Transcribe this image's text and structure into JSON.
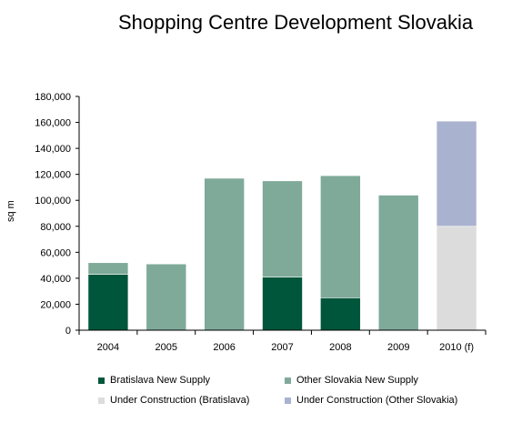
{
  "chart_data": {
    "type": "bar",
    "stacked": true,
    "title": "Shopping Centre Development Slovakia",
    "ylabel": "sq m",
    "xlabel": "",
    "ylim": [
      0,
      180000
    ],
    "yticks": [
      "0",
      "20,000",
      "40,000",
      "60,000",
      "80,000",
      "100,000",
      "120,000",
      "140,000",
      "160,000",
      "180,000"
    ],
    "ytick_values": [
      0,
      20000,
      40000,
      60000,
      80000,
      100000,
      120000,
      140000,
      160000,
      180000
    ],
    "categories": [
      "2004",
      "2005",
      "2006",
      "2007",
      "2008",
      "2009",
      "2010 (f)"
    ],
    "series": [
      {
        "name": "Bratislava New Supply",
        "color": "#00563b",
        "values": [
          43000,
          0,
          0,
          41000,
          25000,
          0,
          0
        ]
      },
      {
        "name": "Other Slovakia New Supply",
        "color": "#7faa99",
        "values": [
          9000,
          51000,
          117000,
          74000,
          94000,
          104000,
          0
        ]
      },
      {
        "name": "Under Construction (Bratislava)",
        "color": "#dcdcdc",
        "values": [
          0,
          0,
          0,
          0,
          0,
          0,
          80000
        ]
      },
      {
        "name": "Under Construction (Other Slovakia)",
        "color": "#a9b3cf",
        "values": [
          0,
          0,
          0,
          0,
          0,
          0,
          81000
        ]
      }
    ],
    "grid": false,
    "legend_position": "bottom"
  }
}
